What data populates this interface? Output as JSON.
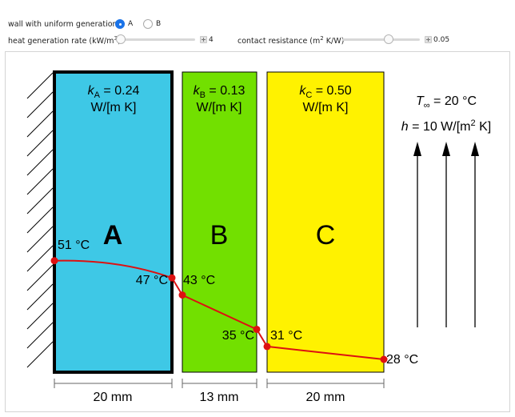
{
  "controls": {
    "wall_label": "wall with uniform generation",
    "wall_options": [
      {
        "label": "A",
        "selected": true
      },
      {
        "label": "B",
        "selected": false
      }
    ],
    "heat_label": "heat generation rate (kW/m",
    "heat_label_sup": "3",
    "heat_label_end": ")",
    "heat_value": "4",
    "heat_fraction": 0.0,
    "contact_label": "contact resistance (m",
    "contact_label_sup": "2",
    "contact_label_end": " K/W)",
    "contact_value": "0.05",
    "contact_fraction": 0.6
  },
  "diagram": {
    "walls": [
      {
        "name": "A",
        "k_sub": "A",
        "k_value": " = 0.24",
        "k_units": "W/[m K]",
        "thickness": "20 mm",
        "color": "#3ec8e6"
      },
      {
        "name": "B",
        "k_sub": "B",
        "k_value": " = 0.13",
        "k_units": "W/[m K]",
        "thickness": "13 mm",
        "color": "#72e000"
      },
      {
        "name": "C",
        "k_sub": "C",
        "k_value": " = 0.50",
        "k_units": "W/[m K]",
        "thickness": "20 mm",
        "color": "#fff200"
      }
    ],
    "k_symbol": "k",
    "t_inf_symbol": "T",
    "t_inf_sub": "∞",
    "t_inf_value": " = 20 °C",
    "h_symbol": "h",
    "h_value": " = 10 W/[m",
    "h_sup": "2",
    "h_end": " K]",
    "profile_color": "#dd1111",
    "temperatures": [
      {
        "label": "51 °C",
        "value": 51
      },
      {
        "label": "47 °C",
        "value": 47
      },
      {
        "label": "43 °C",
        "value": 43
      },
      {
        "label": "35 °C",
        "value": 35
      },
      {
        "label": "31 °C",
        "value": 31
      },
      {
        "label": "28 °C",
        "value": 28
      }
    ]
  }
}
